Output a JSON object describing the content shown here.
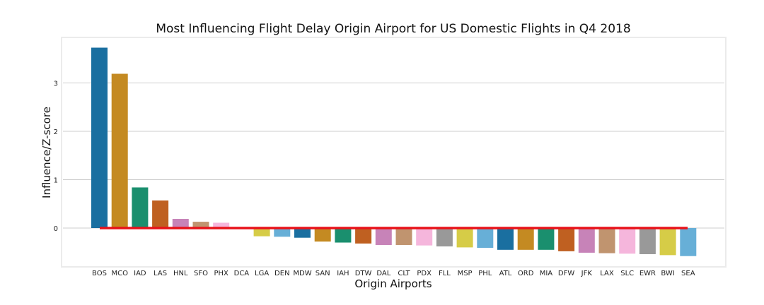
{
  "chart_data": {
    "type": "bar",
    "title": "Most Influencing Flight Delay Origin Airport for US Domestic Flights in Q4 2018",
    "xlabel": "Origin Airports",
    "ylabel": "Influence/Z-score",
    "ylim": [
      -0.8,
      3.95
    ],
    "yticks": [
      0,
      1,
      2,
      3
    ],
    "grid": "horizontal",
    "categories": [
      "BOS",
      "MCO",
      "IAD",
      "LAS",
      "HNL",
      "SFO",
      "PHX",
      "DCA",
      "LGA",
      "DEN",
      "MDW",
      "SAN",
      "IAH",
      "DTW",
      "DAL",
      "CLT",
      "PDX",
      "FLL",
      "MSP",
      "PHL",
      "ATL",
      "ORD",
      "MIA",
      "DFW",
      "JFK",
      "LAX",
      "SLC",
      "EWR",
      "BWI",
      "SEA"
    ],
    "values": [
      3.73,
      3.19,
      0.84,
      0.57,
      0.19,
      0.13,
      0.11,
      0.01,
      -0.17,
      -0.18,
      -0.2,
      -0.28,
      -0.3,
      -0.32,
      -0.35,
      -0.35,
      -0.36,
      -0.38,
      -0.4,
      -0.41,
      -0.45,
      -0.45,
      -0.45,
      -0.48,
      -0.51,
      -0.52,
      -0.53,
      -0.54,
      -0.56,
      -0.58
    ],
    "colors": [
      "#1a6fa0",
      "#c48a22",
      "#1a8f6e",
      "#bf6021",
      "#c783b8",
      "#c0946f",
      "#f5b6dc",
      "#999999",
      "#d6cc47",
      "#67afd7",
      "#1a6fa0",
      "#c48a22",
      "#1a8f6e",
      "#bf6021",
      "#c783b8",
      "#c0946f",
      "#f5b6dc",
      "#999999",
      "#d6cc47",
      "#67afd7",
      "#1a6fa0",
      "#c48a22",
      "#1a8f6e",
      "#bf6021",
      "#c783b8",
      "#c0946f",
      "#f5b6dc",
      "#999999",
      "#d6cc47",
      "#67afd7"
    ],
    "reference_line": {
      "value": 0,
      "color": "#e8121a"
    }
  }
}
